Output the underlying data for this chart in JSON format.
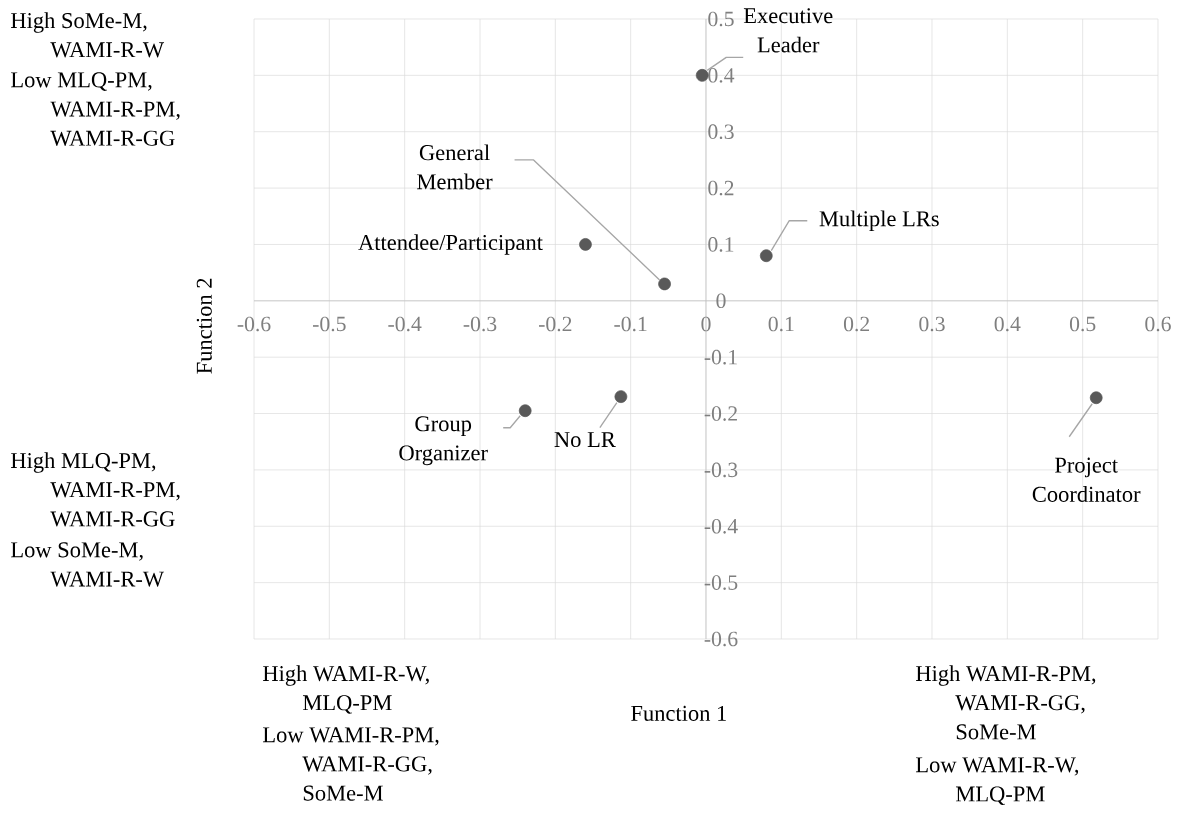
{
  "chart_data": {
    "type": "scatter",
    "xlabel": "Function 1",
    "ylabel": "Function 2",
    "x": [
      -0.005,
      0.08,
      -0.16,
      -0.055,
      -0.24,
      -0.113,
      0.518
    ],
    "series": [
      {
        "color": "#595959",
        "values": [
          0.4,
          0.08,
          0.1,
          0.03,
          -0.195,
          -0.17,
          -0.172
        ]
      }
    ],
    "xlim": [
      -0.6,
      0.6
    ],
    "ylim": [
      -0.6,
      0.5
    ],
    "xticks": [
      -0.6,
      -0.5,
      -0.4,
      -0.3,
      -0.2,
      -0.1,
      0,
      0.1,
      0.2,
      0.3,
      0.4,
      0.5,
      0.6
    ],
    "yticks": [
      -0.6,
      -0.5,
      -0.4,
      -0.3,
      -0.2,
      -0.1,
      0,
      0.1,
      0.2,
      0.3,
      0.4,
      0.5
    ],
    "grid": true,
    "marker": "circle",
    "annotations": [
      {
        "text": "Executive Leader",
        "x": -0.005,
        "y": 0.4
      },
      {
        "text": "Multiple LRs",
        "x": 0.08,
        "y": 0.08
      },
      {
        "text": "Attendee/Participant",
        "x": -0.16,
        "y": 0.1
      },
      {
        "text": "General Member",
        "x": -0.055,
        "y": 0.03
      },
      {
        "text": "Group Organizer",
        "x": -0.24,
        "y": -0.195
      },
      {
        "text": "No LR",
        "x": -0.113,
        "y": -0.17
      },
      {
        "text": "Project Coordinator",
        "x": 0.518,
        "y": -0.172
      },
      "High SoMe-M, WAMI-R-W",
      "Low MLQ-PM, WAMI-R-PM, WAMI-R-GG",
      "High MLQ-PM, WAMI-R-PM, WAMI-R-GG",
      "Low SoMe-M, WAMI-R-W",
      "High WAMI-R-W, MLQ-PM",
      "Low WAMI-R-PM, WAMI-R-GG, SoMe-M",
      "High WAMI-R-PM, WAMI-R-GG, SoMe-M",
      "Low WAMI-R-W, MLQ-PM"
    ]
  }
}
